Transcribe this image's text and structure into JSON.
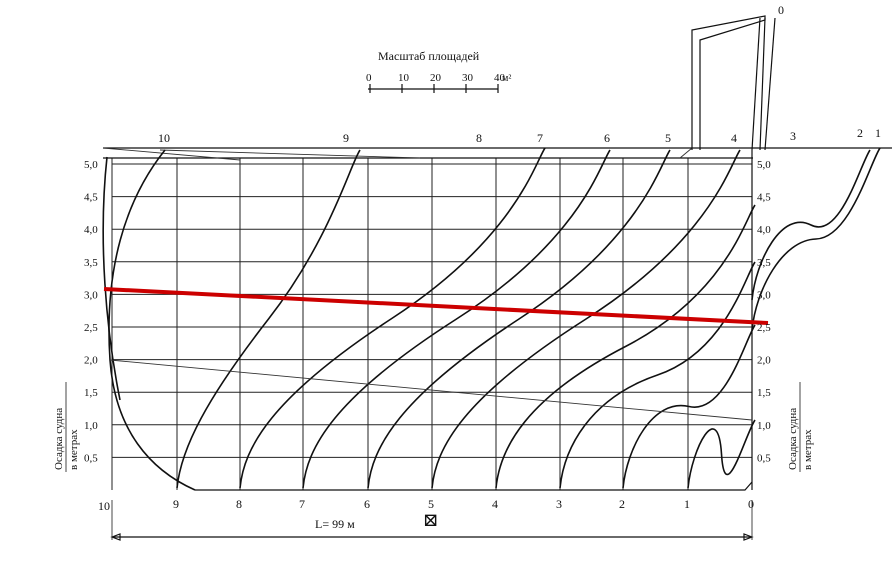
{
  "scale": {
    "title": "Масштаб площадей",
    "ticks": [
      "0",
      "10",
      "20",
      "30",
      "40"
    ],
    "unit": "м²"
  },
  "frames_top": [
    "10",
    "9",
    "8",
    "7",
    "6",
    "5",
    "4",
    "3",
    "2",
    "1",
    "0"
  ],
  "frames_bottom": [
    "10",
    "9",
    "8",
    "7",
    "6",
    "5",
    "4",
    "3",
    "2",
    "1",
    "0"
  ],
  "draft_ticks": [
    "0,5",
    "1,0",
    "1,5",
    "2,0",
    "2,5",
    "3,0",
    "3,5",
    "4,0",
    "4,5",
    "5,0"
  ],
  "axis_label_line1": "Осадка судна",
  "axis_label_line2": "в метрах",
  "length_label": "L= 99 м",
  "midship_symbol": "⊠",
  "colors": {
    "ink": "#111111",
    "red_waterline": "#cc0000"
  }
}
